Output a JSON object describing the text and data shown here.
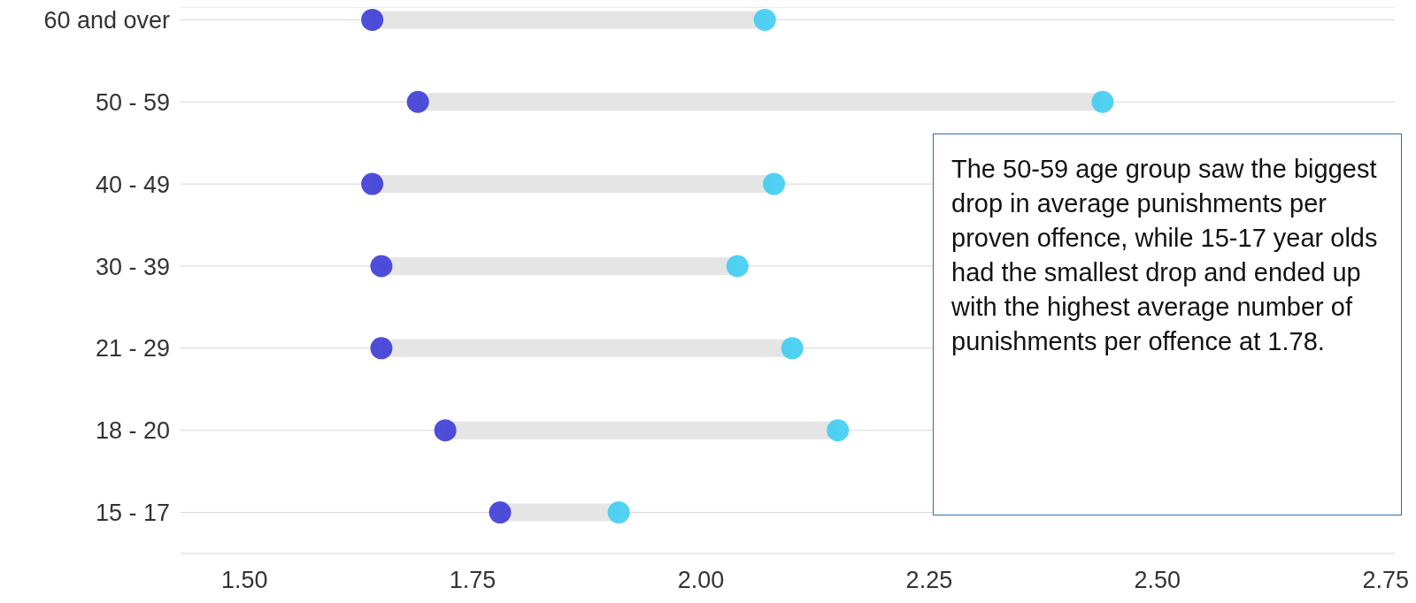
{
  "chart_data": {
    "type": "lollipop",
    "orientation": "horizontal",
    "categories": [
      "60 and over",
      "50 - 59",
      "40 - 49",
      "30 - 39",
      "21 - 29",
      "18 - 20",
      "15 - 17"
    ],
    "series": [
      {
        "color": "#3fcdf2",
        "values": [
          2.07,
          2.44,
          2.08,
          2.04,
          2.1,
          2.15,
          1.91
        ]
      },
      {
        "color": "#3b3bd6",
        "values": [
          1.64,
          1.69,
          1.64,
          1.65,
          1.65,
          1.72,
          1.78
        ]
      }
    ],
    "xlim": [
      1.43,
      2.76
    ],
    "xticks": [
      {
        "value": 1.5,
        "label": "1.50"
      },
      {
        "value": 1.75,
        "label": "1.75"
      },
      {
        "value": 2,
        "label": "2.00"
      },
      {
        "value": 2.25,
        "label": "2.25"
      },
      {
        "value": 2.5,
        "label": "2.50"
      },
      {
        "value": 2.75,
        "label": "2.75"
      }
    ],
    "grid": "y",
    "marker": "circle",
    "annotations": [
      "The 50-59 age group saw the biggest drop in average punishments per proven offence, while 15-17 year olds had the smallest drop and ended up with the highest average number of punishments per offence at 1.78."
    ]
  }
}
